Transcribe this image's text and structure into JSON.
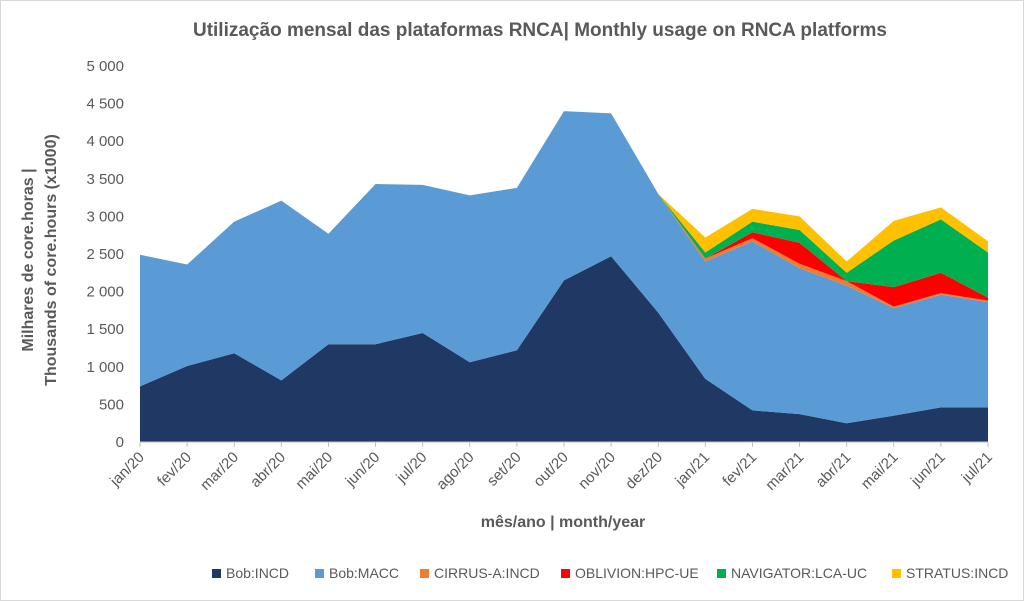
{
  "chart_data": {
    "type": "area",
    "stacked": true,
    "title": "Utilização mensal das plataformas RNCA| Monthly usage on RNCA platforms",
    "xlabel": "mês/ano | month/year",
    "ylabel_line1": "Milhares de core.horas |",
    "ylabel_line2": "Thousands of core.hours (x1000)",
    "ylim": [
      0,
      5000
    ],
    "ytick_values": [
      0,
      500,
      1000,
      1500,
      2000,
      2500,
      3000,
      3500,
      4000,
      4500,
      5000
    ],
    "ytick_labels": [
      "0",
      "500",
      "1 000",
      "1 500",
      "2 000",
      "2 500",
      "3 000",
      "3 500",
      "4 000",
      "4 500",
      "5 000"
    ],
    "categories": [
      "jan/20",
      "fev/20",
      "mar/20",
      "abr/20",
      "mai/20",
      "jun/20",
      "jul/20",
      "ago/20",
      "set/20",
      "out/20",
      "nov/20",
      "dez/20",
      "jan/21",
      "fev/21",
      "mar/21",
      "abr/21",
      "mai/21",
      "jun/21",
      "jul/21"
    ],
    "legend_position": "bottom",
    "series": [
      {
        "name": "Bob:INCD",
        "color": "#203864",
        "values": [
          740,
          1010,
          1180,
          820,
          1300,
          1300,
          1450,
          1060,
          1220,
          2150,
          2470,
          1720,
          840,
          420,
          370,
          250,
          350,
          460,
          460
        ]
      },
      {
        "name": "Bob:MACC",
        "color": "#5b9bd5",
        "values": [
          1750,
          1350,
          1750,
          2390,
          1470,
          2130,
          1970,
          2220,
          2160,
          2250,
          1900,
          1580,
          1560,
          2250,
          1940,
          1830,
          1430,
          1500,
          1400
        ]
      },
      {
        "name": "CIRRUS-A:INCD",
        "color": "#ed7d31",
        "values": [
          0,
          0,
          0,
          0,
          0,
          0,
          0,
          0,
          0,
          0,
          0,
          0,
          40,
          40,
          60,
          60,
          20,
          20,
          20
        ]
      },
      {
        "name": "OBLIVION:HPC-UE",
        "color": "#ff0000",
        "values": [
          0,
          0,
          0,
          0,
          0,
          0,
          0,
          0,
          0,
          0,
          0,
          0,
          0,
          80,
          280,
          0,
          260,
          270,
          40
        ]
      },
      {
        "name": "NAVIGATOR:LCA-UC",
        "color": "#00b050",
        "values": [
          0,
          0,
          0,
          0,
          0,
          0,
          0,
          0,
          0,
          0,
          0,
          0,
          80,
          140,
          170,
          110,
          620,
          710,
          600
        ]
      },
      {
        "name": "STRATUS:INCD",
        "color": "#ffc000",
        "values": [
          0,
          0,
          0,
          0,
          0,
          0,
          0,
          0,
          0,
          0,
          0,
          0,
          200,
          170,
          180,
          150,
          260,
          160,
          150
        ]
      }
    ]
  }
}
